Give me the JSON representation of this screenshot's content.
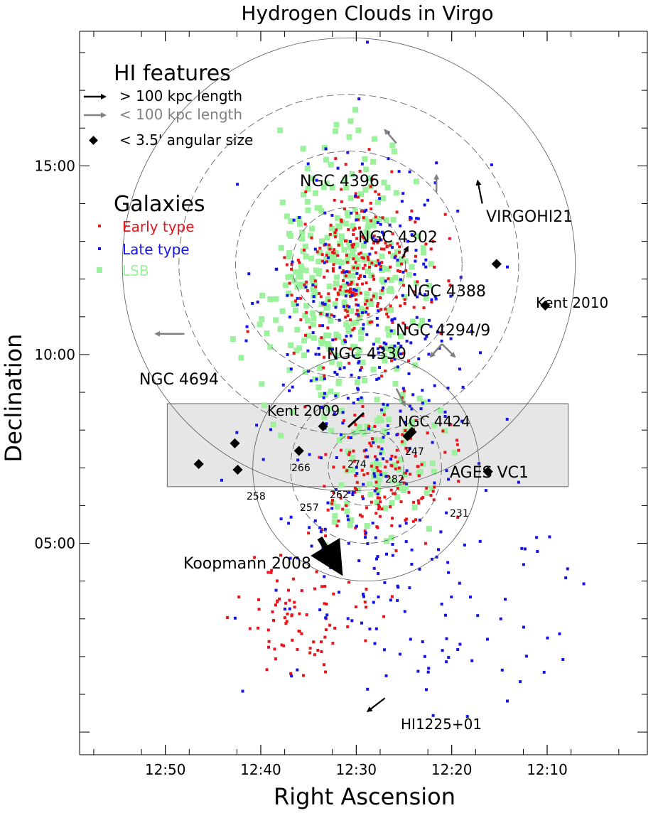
{
  "chart_data": {
    "type": "scatter",
    "title": "Hydrogen Clouds in Virgo",
    "xlabel": "Right Ascension",
    "ylabel": "Declination",
    "x_ticks": [
      "12:50",
      "12:40",
      "12:30",
      "12:20",
      "12:10"
    ],
    "y_ticks": [
      "15:00",
      "10:00",
      "05:00"
    ],
    "xlim": [
      12.983,
      12.067
    ],
    "ylim": [
      -0.6,
      18.6
    ],
    "grid": false,
    "legend": {
      "placement": "top-left",
      "hi_title": "HI features",
      "hi_items": [
        {
          "label": "> 100 kpc length",
          "color": "#000000",
          "marker": "arrow"
        },
        {
          "label": "< 100 kpc length",
          "color": "#808080",
          "marker": "arrow"
        },
        {
          "label": "< 3.5' angular size",
          "color": "#000000",
          "marker": "diamond"
        }
      ],
      "gal_title": "Galaxies",
      "gal_items": [
        {
          "label": "Early type",
          "color": "#e8141a"
        },
        {
          "label": "Late type",
          "color": "#1414e8"
        },
        {
          "label": "LSB",
          "color": "#9cf29c"
        }
      ]
    },
    "series": [
      {
        "name": "Early type",
        "color": "#e8141a"
      },
      {
        "name": "Late type",
        "color": "#1414e8"
      },
      {
        "name": "LSB",
        "color": "#9cf29c"
      }
    ],
    "survey_region": {
      "name": "AGES VC1",
      "ra": [
        12.83,
        12.13
      ],
      "dec": [
        6.5,
        8.7
      ],
      "fill": "#e6e6e6"
    },
    "circles": [
      {
        "ra": 12.513,
        "dec": 12.39,
        "radius_deg": 1.5,
        "dashed": true
      },
      {
        "ra": 12.513,
        "dec": 12.39,
        "radius_deg": 3.0,
        "dashed": true
      },
      {
        "ra": 12.513,
        "dec": 12.39,
        "radius_deg": 4.5,
        "dashed": true
      },
      {
        "ra": 12.513,
        "dec": 12.39,
        "radius_deg": 6.0,
        "dashed": false
      },
      {
        "ra": 12.483,
        "dec": 7.0,
        "radius_deg": 1.0,
        "dashed": true
      },
      {
        "ra": 12.483,
        "dec": 7.0,
        "radius_deg": 2.0,
        "dashed": true
      },
      {
        "ra": 12.483,
        "dec": 7.0,
        "radius_deg": 3.0,
        "dashed": false
      }
    ],
    "features": [
      {
        "label": "NGC 4396",
        "kind": "arrow-short",
        "ra": 12.43,
        "dec": 15.6,
        "dx": 0.02,
        "dy": 0.35
      },
      {
        "label": "VIRGOHI21",
        "kind": "arrow-long",
        "ra": 12.28,
        "dec": 14.0,
        "dx": 0.008,
        "dy": 0.6
      },
      {
        "label": "",
        "kind": "arrow-short",
        "ra": 12.36,
        "dec": 14.3,
        "dx": 0.0,
        "dy": 0.45
      },
      {
        "label": "NGC 4302",
        "kind": "none",
        "ra": 12.36,
        "dec": 14.6
      },
      {
        "label": "NGC 4388",
        "kind": "arrow-long",
        "ra": 12.42,
        "dec": 12.55,
        "dx": -0.01,
        "dy": 0.3
      },
      {
        "label": "Kent 2010",
        "kind": "diamond",
        "ra": 12.255,
        "dec": 12.4
      },
      {
        "label": "",
        "kind": "diamond",
        "ra": 12.17,
        "dec": 11.3
      },
      {
        "label": "NGC 4294/9",
        "kind": "arrow-short-pair",
        "ra": 12.36,
        "dec": 11.0
      },
      {
        "label": "NGC 4330",
        "kind": "none",
        "ra": 12.39,
        "dec": 10.9
      },
      {
        "label": "NGC 4694",
        "kind": "arrow-short",
        "ra": 12.8,
        "dec": 10.55,
        "dx": 0.05,
        "dy": 0.0
      },
      {
        "label": "Kent 2009",
        "kind": "line",
        "ra": 12.5,
        "dec": 9.35
      },
      {
        "label": "NGC 4424",
        "kind": "arrow-short",
        "ra": 12.43,
        "dec": 9.1,
        "dx": -0.015,
        "dy": -0.45
      },
      {
        "label": "247",
        "kind": "diamond-pair",
        "ra": 12.403,
        "dec": 7.95
      },
      {
        "label": "274",
        "kind": "diamond",
        "ra": 12.558,
        "dec": 8.1
      },
      {
        "label": "266",
        "kind": "diamond",
        "ra": 12.712,
        "dec": 7.65
      },
      {
        "label": "262",
        "kind": "diamond",
        "ra": 12.6,
        "dec": 7.45
      },
      {
        "label": "282",
        "kind": "none",
        "ra": 12.43,
        "dec": 7.5
      },
      {
        "label": "258",
        "kind": "diamond",
        "ra": 12.775,
        "dec": 7.1
      },
      {
        "label": "257",
        "kind": "diamond",
        "ra": 12.707,
        "dec": 6.95
      },
      {
        "label": "231",
        "kind": "diamond",
        "ra": 12.27,
        "dec": 6.9
      },
      {
        "label": "Koopmann 2008",
        "kind": "arrow-thick",
        "ra": 12.627,
        "dec": 5.9,
        "dx": 0.06,
        "dy": -0.7
      },
      {
        "label": "HI1225+01",
        "kind": "arrow-long",
        "ra": 12.45,
        "dec": 0.9,
        "dx": 0.03,
        "dy": -0.35
      }
    ],
    "feature_labels": [
      "NGC 4396",
      "VIRGOHI21",
      "NGC 4302",
      "NGC 4388",
      "Kent 2010",
      "NGC 4294/9",
      "NGC 4330",
      "NGC 4694",
      "Kent 2009",
      "NGC 4424",
      "247",
      "274",
      "266",
      "262",
      "282",
      "258",
      "257",
      "231",
      "Koopmann 2008",
      "HI1225+01"
    ],
    "region_label": "AGES VC1"
  }
}
